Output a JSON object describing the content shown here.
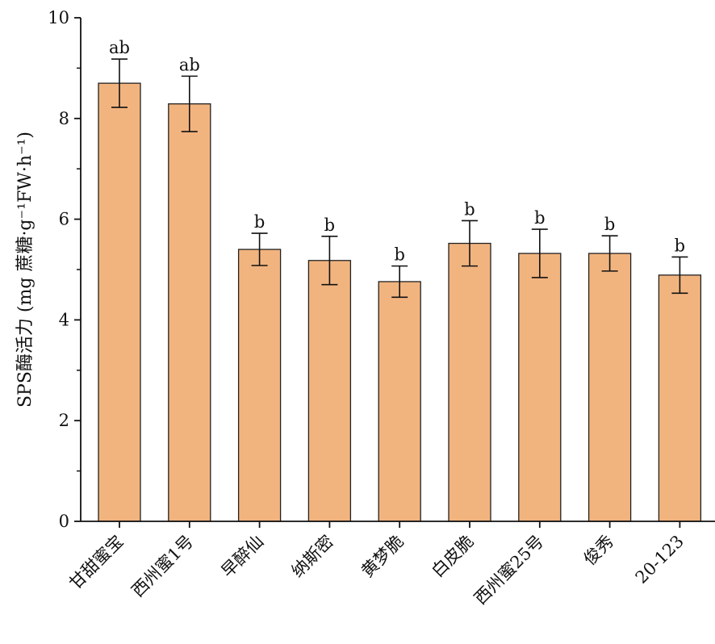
{
  "chart_data": {
    "type": "bar",
    "categories": [
      "甘甜蜜宝",
      "西州蜜1号",
      "早醉仙",
      "纳斯密",
      "黄梦脆",
      "白皮脆",
      "西州蜜25号",
      "俊秀",
      "20-123"
    ],
    "values": [
      8.7,
      8.29,
      5.4,
      5.18,
      4.76,
      5.52,
      5.32,
      5.32,
      4.89
    ],
    "errors": [
      0.48,
      0.55,
      0.32,
      0.48,
      0.31,
      0.45,
      0.48,
      0.35,
      0.36
    ],
    "significance": [
      "ab",
      "ab",
      "b",
      "b",
      "b",
      "b",
      "b",
      "b",
      "b"
    ],
    "title": "",
    "xlabel": "",
    "ylabel": "SPS酶活力 (mg 蔗糖·g⁻¹FW·h⁻¹)",
    "ylim": [
      0,
      10
    ],
    "yticks": [
      0,
      2,
      4,
      6,
      8,
      10
    ],
    "bar_color": "#f2b47f",
    "grid": false,
    "legend": "none"
  }
}
